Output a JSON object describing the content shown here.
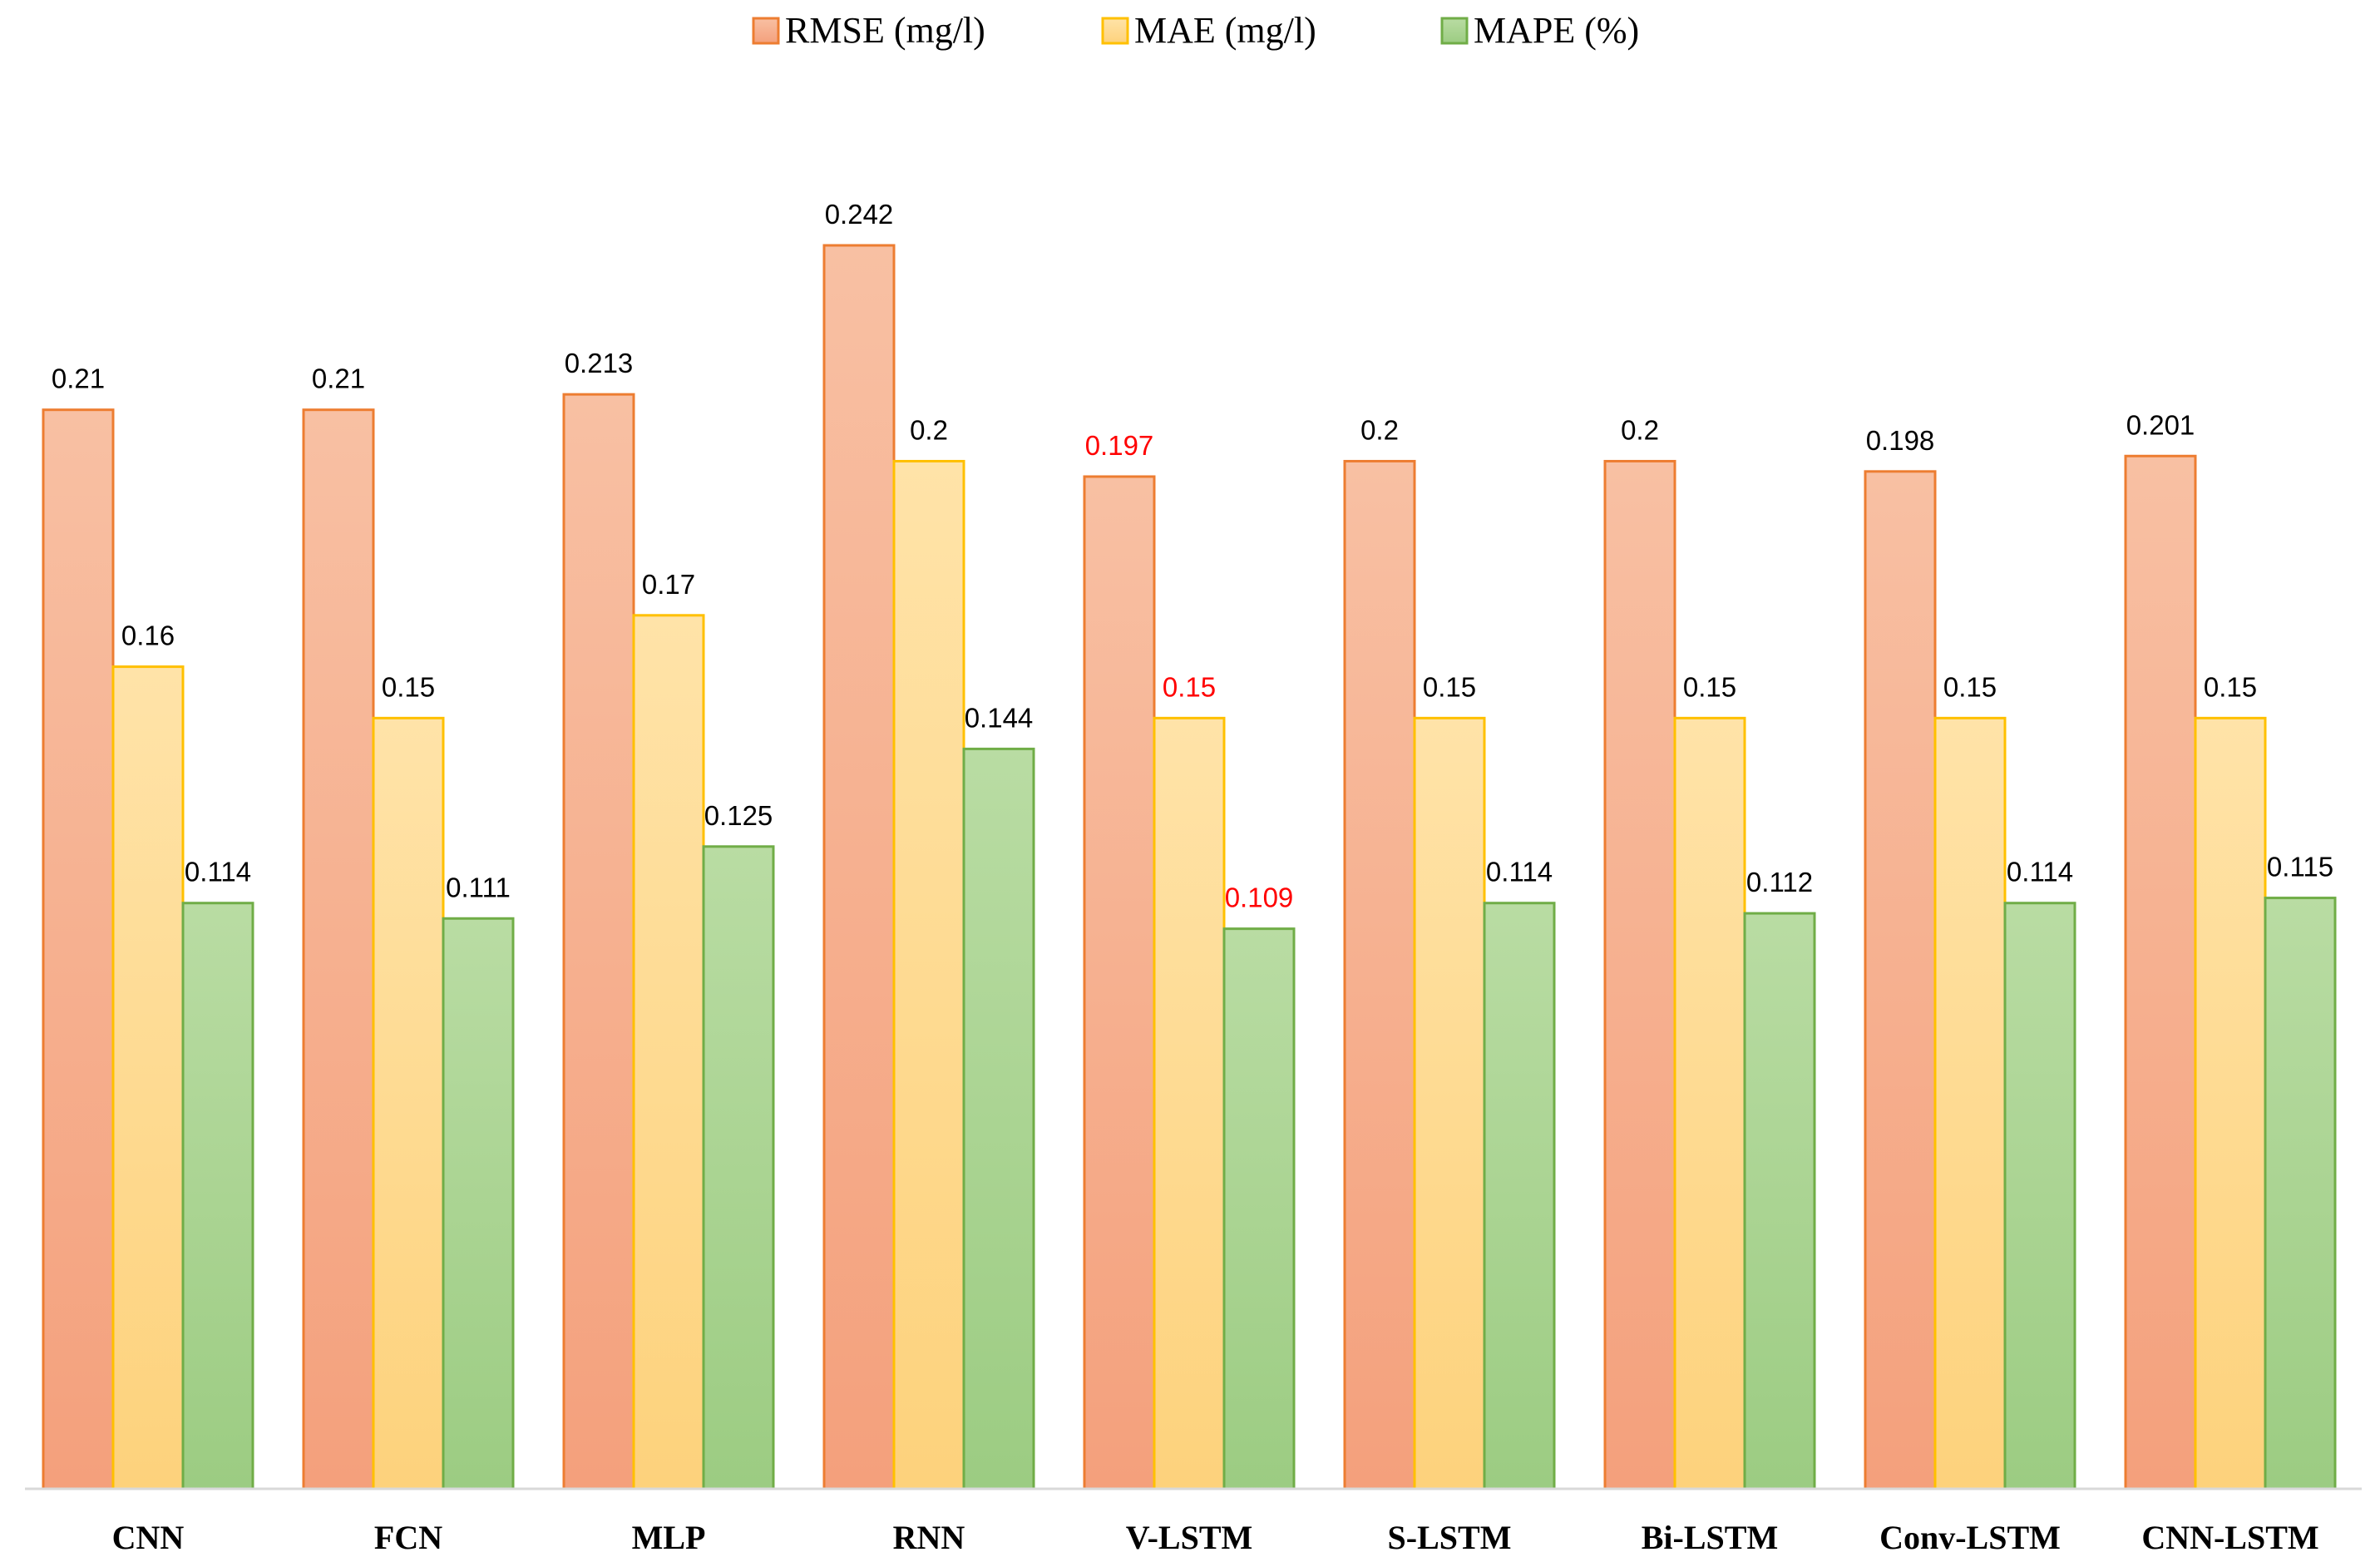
{
  "chart_data": {
    "type": "bar",
    "title": "",
    "xlabel": "",
    "ylabel": "",
    "ylim": [
      0,
      0.25
    ],
    "grid": false,
    "legend_position": "top-center",
    "categories": [
      "CNN",
      "FCN",
      "MLP",
      "RNN",
      "V-LSTM",
      "S-LSTM",
      "Bi-LSTM",
      "Conv-LSTM",
      "CNN-LSTM"
    ],
    "series": [
      {
        "name": "RMSE (mg/l)",
        "color": "#ed7d31",
        "values": [
          0.21,
          0.21,
          0.213,
          0.242,
          0.197,
          0.2,
          0.2,
          0.198,
          0.201
        ],
        "labels": [
          "0.21",
          "0.21",
          "0.213",
          "0.242",
          "0.197",
          "0.2",
          "0.2",
          "0.198",
          "0.201"
        ]
      },
      {
        "name": "MAE (mg/l)",
        "color": "#ffc000",
        "values": [
          0.16,
          0.15,
          0.17,
          0.2,
          0.15,
          0.15,
          0.15,
          0.15,
          0.15
        ],
        "labels": [
          "0.16",
          "0.15",
          "0.17",
          "0.2",
          "0.15",
          "0.15",
          "0.15",
          "0.15",
          "0.15"
        ]
      },
      {
        "name": "MAPE (%)",
        "color": "#70ad47",
        "values": [
          0.114,
          0.111,
          0.125,
          0.144,
          0.109,
          0.114,
          0.112,
          0.114,
          0.115
        ],
        "labels": [
          "0.114",
          "0.111",
          "0.125",
          "0.144",
          "0.109",
          "0.114",
          "0.112",
          "0.114",
          "0.115"
        ]
      }
    ],
    "highlight_category": "V-LSTM",
    "highlight_color": "#ff0000"
  }
}
